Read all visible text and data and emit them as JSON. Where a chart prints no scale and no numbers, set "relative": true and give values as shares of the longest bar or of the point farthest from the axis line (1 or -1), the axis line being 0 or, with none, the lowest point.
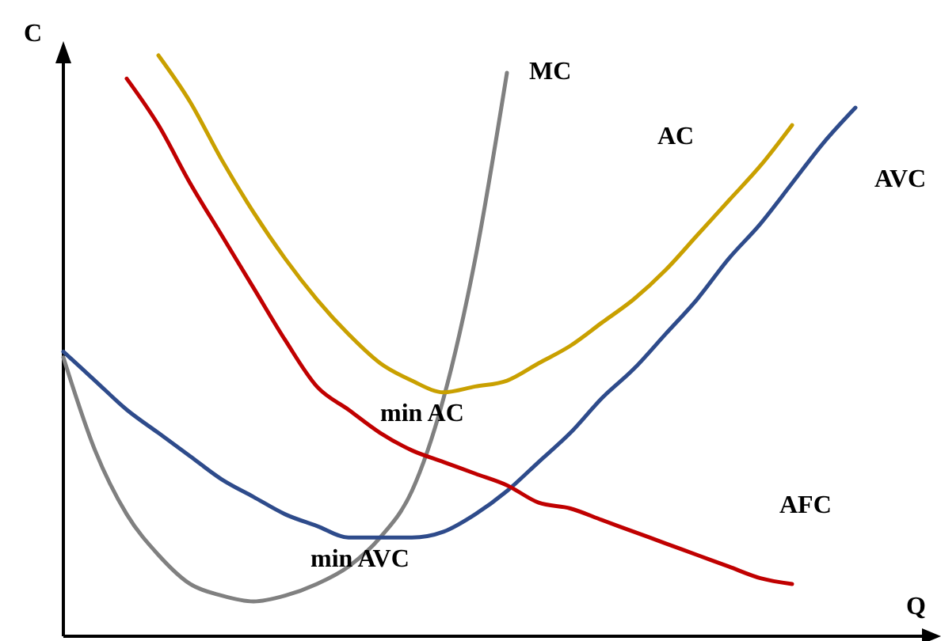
{
  "chart_data": {
    "type": "line",
    "relative": true,
    "xlabel": "Q",
    "ylabel": "C",
    "categories": [
      null,
      null,
      null,
      null,
      null,
      null,
      null,
      null,
      null,
      null,
      null,
      null,
      null,
      null,
      null,
      null,
      null,
      null,
      null,
      null,
      null,
      null,
      null,
      null,
      null,
      null,
      null
    ],
    "series": [
      {
        "name": "MC",
        "color": "#808080",
        "values": [
          0.48,
          0.32,
          0.21,
          0.14,
          0.09,
          0.07,
          0.06,
          0.07,
          0.09,
          0.12,
          0.17,
          0.25,
          0.41,
          0.65,
          0.97,
          null,
          null,
          null,
          null,
          null,
          null,
          null,
          null,
          null,
          null,
          null,
          null
        ]
      },
      {
        "name": "AC",
        "color": "#c9a000",
        "values": [
          null,
          null,
          null,
          1.0,
          0.92,
          0.82,
          0.73,
          0.65,
          0.58,
          0.52,
          0.47,
          0.44,
          0.42,
          0.43,
          0.44,
          0.47,
          0.5,
          0.54,
          0.58,
          0.63,
          0.69,
          0.75,
          0.81,
          0.88,
          null,
          null,
          null
        ]
      },
      {
        "name": "AVC",
        "color": "#2e4b8b",
        "values": [
          0.49,
          0.44,
          0.39,
          0.35,
          0.31,
          0.27,
          0.24,
          0.21,
          0.19,
          0.17,
          0.17,
          0.17,
          0.18,
          0.21,
          0.25,
          0.3,
          0.35,
          0.41,
          0.46,
          0.52,
          0.58,
          0.65,
          0.71,
          0.78,
          0.85,
          0.91,
          null
        ]
      },
      {
        "name": "AFC",
        "color": "#c00000",
        "values": [
          null,
          null,
          0.96,
          0.88,
          0.78,
          0.69,
          0.6,
          0.51,
          0.43,
          0.39,
          0.35,
          0.32,
          0.3,
          0.28,
          0.26,
          0.23,
          0.22,
          0.2,
          0.18,
          0.16,
          0.14,
          0.12,
          0.1,
          0.09,
          null,
          null,
          null
        ]
      }
    ],
    "annotations": [
      "min AC",
      "min AVC"
    ]
  }
}
